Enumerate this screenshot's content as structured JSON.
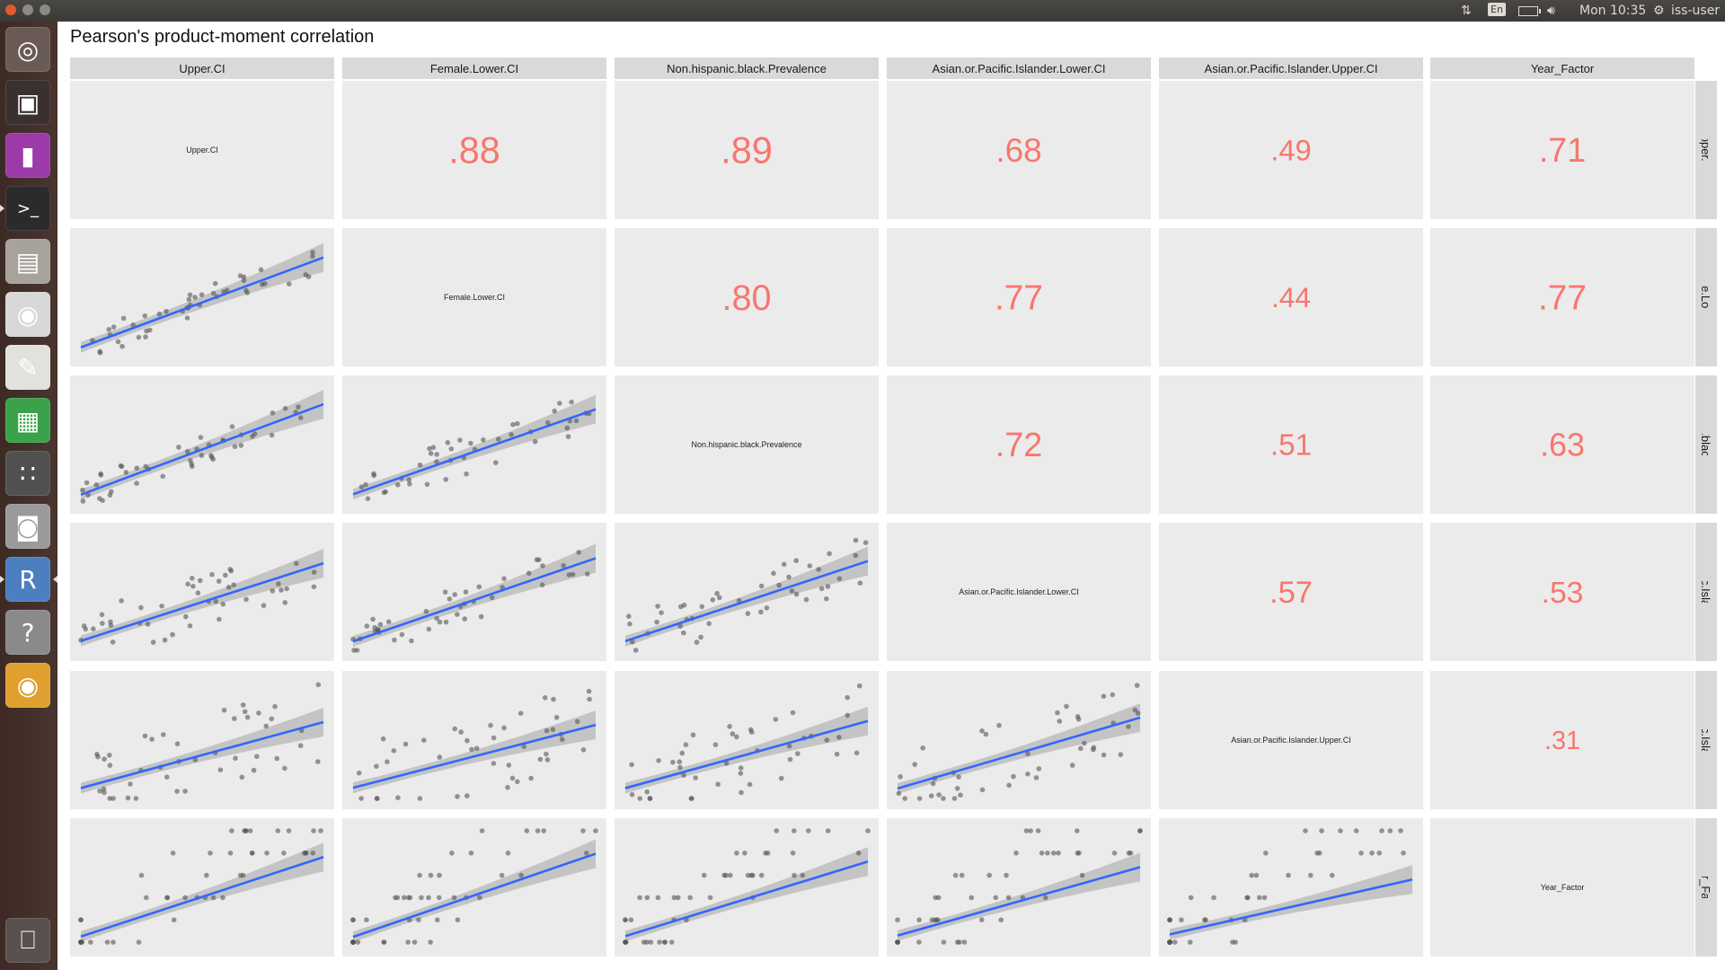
{
  "topbar": {
    "language": "En",
    "clock": "Mon 10:35",
    "user": "iss-user"
  },
  "launcher": {
    "apps": [
      {
        "name": "dash-icon",
        "glyph": "◎",
        "bg": "#6a5a55"
      },
      {
        "name": "workspace-switcher-icon",
        "glyph": "▣",
        "bg": "#3a3030"
      },
      {
        "name": "video-editor-icon",
        "glyph": "▮",
        "bg": "#9b3aa8"
      },
      {
        "name": "terminal-icon",
        "glyph": ">_",
        "bg": "#2b2b2b"
      },
      {
        "name": "file-manager-icon",
        "glyph": "▤",
        "bg": "#a7a29a"
      },
      {
        "name": "chrome-icon",
        "glyph": "◉",
        "bg": "#d8d8d8"
      },
      {
        "name": "text-editor-icon",
        "glyph": "✎",
        "bg": "#e2e2dc"
      },
      {
        "name": "spreadsheet-icon",
        "glyph": "▦",
        "bg": "#3aa24a"
      },
      {
        "name": "calculator-icon",
        "glyph": "∷",
        "bg": "#505050"
      },
      {
        "name": "screenshot-icon",
        "glyph": "◙",
        "bg": "#9a9a9a"
      },
      {
        "name": "rstudio-icon",
        "glyph": "R",
        "bg": "#4b7fc0"
      },
      {
        "name": "help-icon",
        "glyph": "?",
        "bg": "#8a8a8a"
      },
      {
        "name": "chrome-alt-icon",
        "glyph": "◉",
        "bg": "#e0a030"
      }
    ],
    "trash": {
      "name": "trash-icon",
      "glyph": "⎕",
      "bg": "#5a5050"
    }
  },
  "colors": {
    "panel": "#ebebeb",
    "strip": "#d9d9d9",
    "line": "#3366ff",
    "ribbon": "#bdbdbd",
    "corr_text": "#f8766d",
    "point": "#555555"
  },
  "chart_data": {
    "type": "scatter-matrix",
    "title": "Pearson's product-moment correlation",
    "variables": [
      "Upper.CI",
      "Female.Lower.CI",
      "Non.hispanic.black.Prevalence",
      "Asian.or.Pacific.Islander.Lower.CI",
      "Asian.or.Pacific.Islander.Upper.CI",
      "Year_Factor"
    ],
    "row_strip_labels": [
      "Upper.CI",
      "Female.Lower.CI",
      "Non.hispanic.black.Prevalence",
      "Asian.or.Pacific.Islander.Lower.CI",
      "Asian.or.Pacific.Islander.Upper.CI",
      "Year_Factor"
    ],
    "correlations": [
      {
        "row": 0,
        "col": 1,
        "r": ".88"
      },
      {
        "row": 0,
        "col": 2,
        "r": ".89"
      },
      {
        "row": 0,
        "col": 3,
        "r": ".68"
      },
      {
        "row": 0,
        "col": 4,
        "r": ".49"
      },
      {
        "row": 0,
        "col": 5,
        "r": ".71"
      },
      {
        "row": 1,
        "col": 2,
        "r": ".80"
      },
      {
        "row": 1,
        "col": 3,
        "r": ".77"
      },
      {
        "row": 1,
        "col": 4,
        "r": ".44"
      },
      {
        "row": 1,
        "col": 5,
        "r": ".77"
      },
      {
        "row": 2,
        "col": 3,
        "r": ".72"
      },
      {
        "row": 2,
        "col": 4,
        "r": ".51"
      },
      {
        "row": 2,
        "col": 5,
        "r": ".63"
      },
      {
        "row": 3,
        "col": 4,
        "r": ".57"
      },
      {
        "row": 3,
        "col": 5,
        "r": ".53"
      },
      {
        "row": 4,
        "col": 5,
        "r": ".31"
      }
    ],
    "fit": "linear regression with confidence band",
    "points_per_panel": 45
  }
}
